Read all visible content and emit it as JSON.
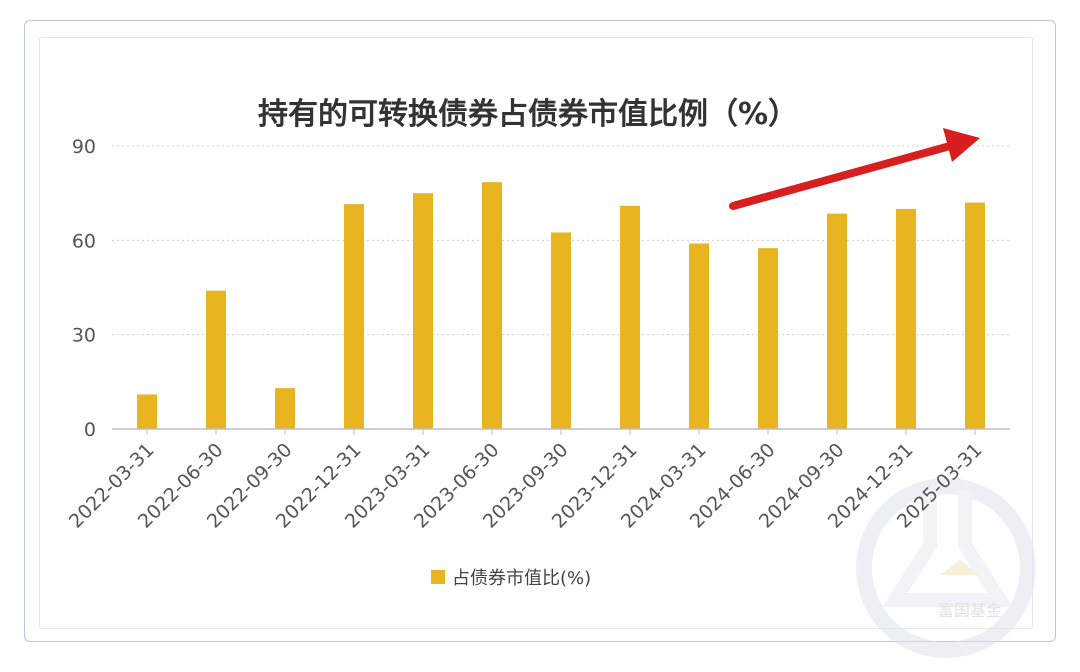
{
  "chart_data": {
    "type": "bar",
    "title": "持有的可转换债券占债券市值比例（%）",
    "xlabel": "",
    "ylabel": "",
    "categories": [
      "2022-03-31",
      "2022-06-30",
      "2022-09-30",
      "2022-12-31",
      "2023-03-31",
      "2023-06-30",
      "2023-09-30",
      "2023-12-31",
      "2024-03-31",
      "2024-06-30",
      "2024-09-30",
      "2024-12-31",
      "2025-03-31"
    ],
    "series": [
      {
        "name": "占债券市值比(%)",
        "values": [
          11,
          44,
          13,
          71.5,
          75,
          78.5,
          62.5,
          71,
          59,
          57.5,
          68.5,
          70,
          72
        ],
        "color": "#e8b420"
      }
    ],
    "ylim": [
      0,
      90
    ],
    "yticks": [
      "0",
      "30",
      "60",
      "90"
    ],
    "grid": true,
    "legend": "bottom-center",
    "annotation": {
      "type": "arrow",
      "color": "#d81e1e",
      "direction": "upward-trend"
    }
  },
  "watermark": {
    "text": "富国基金"
  }
}
